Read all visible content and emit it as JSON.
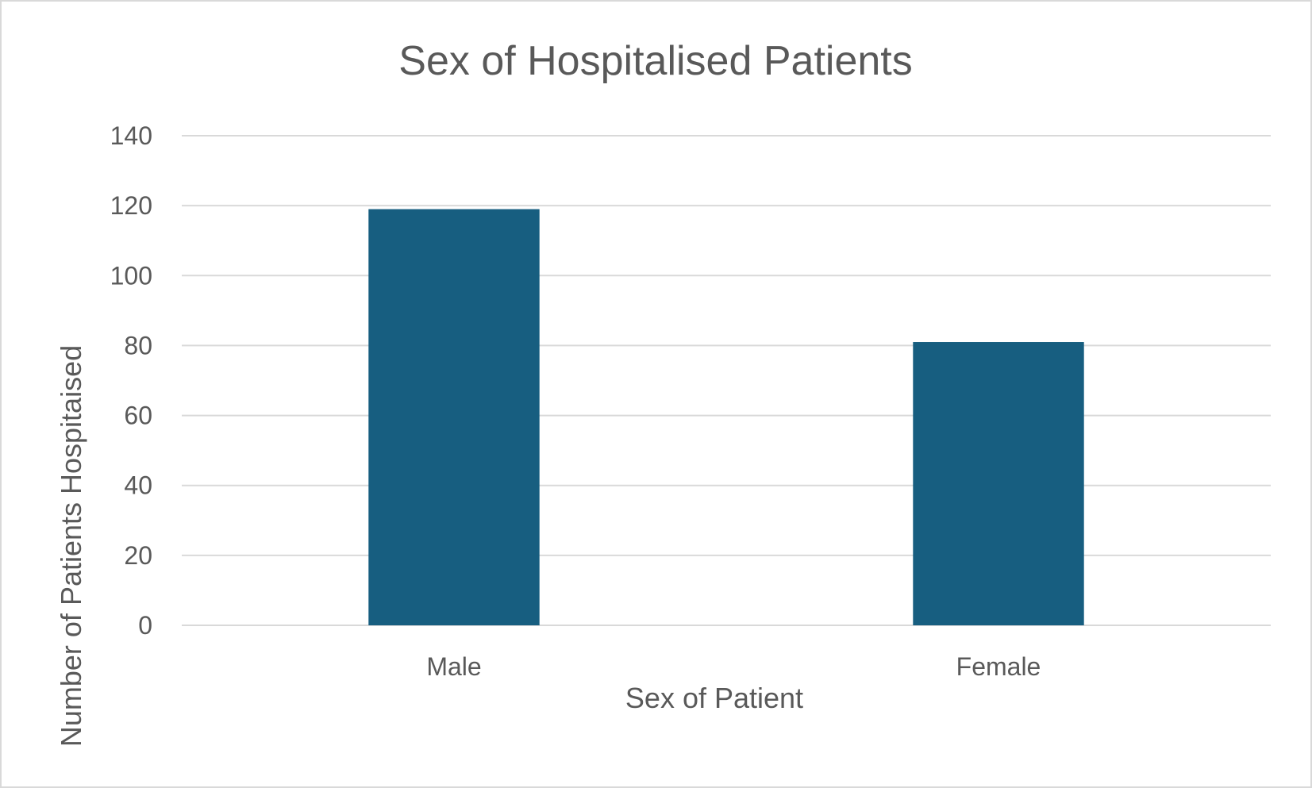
{
  "chart_data": {
    "type": "bar",
    "title": "Sex of Hospitalised Patients",
    "xlabel": "Sex of Patient",
    "ylabel": "Number of Patients Hospitaised",
    "categories": [
      "Male",
      "Female"
    ],
    "values": [
      119,
      81
    ],
    "ylim": [
      0,
      140
    ],
    "yticks": [
      0,
      20,
      40,
      60,
      80,
      100,
      120,
      140
    ],
    "ytick_labels": [
      "0",
      "20",
      "40",
      "60",
      "80",
      "100",
      "120",
      "140"
    ],
    "grid": true,
    "bar_color": "#175E80",
    "legend": "none"
  }
}
